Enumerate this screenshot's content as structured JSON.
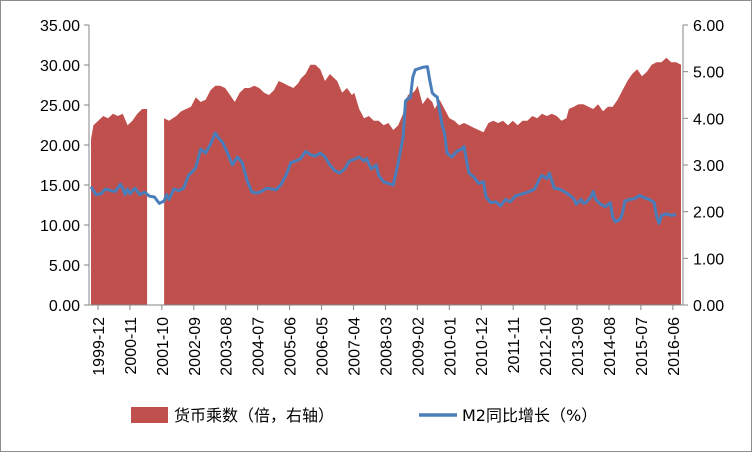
{
  "chart_data": {
    "type": "area",
    "x_ticks": [
      "1999-12",
      "2000-11",
      "2001-10",
      "2002-09",
      "2003-08",
      "2004-07",
      "2005-06",
      "2006-05",
      "2007-04",
      "2008-03",
      "2009-02",
      "2010-01",
      "2010-12",
      "2011-11",
      "2012-10",
      "2013-09",
      "2014-08",
      "2015-07",
      "2016-06"
    ],
    "left_axis": {
      "ylim": [
        0,
        35
      ],
      "ticks": [
        "0.00",
        "5.00",
        "10.00",
        "15.00",
        "20.00",
        "25.00",
        "30.00",
        "35.00"
      ]
    },
    "right_axis": {
      "ylim": [
        0,
        6
      ],
      "ticks": [
        "0.00",
        "1.00",
        "2.00",
        "3.00",
        "4.00",
        "5.00",
        "6.00"
      ]
    },
    "grid": false,
    "legend_position": "bottom",
    "series": [
      {
        "name": "货币乘数（倍，右轴）",
        "axis": "right",
        "type": "area",
        "color": "#c0504d",
        "points": [
          [
            0,
            3.55
          ],
          [
            2,
            3.85
          ],
          [
            6,
            3.95
          ],
          [
            10,
            4.05
          ],
          [
            14,
            4.0
          ],
          [
            18,
            4.1
          ],
          [
            22,
            4.05
          ],
          [
            26,
            4.1
          ],
          [
            30,
            3.85
          ],
          [
            34,
            3.95
          ],
          [
            38,
            4.1
          ],
          [
            42,
            4.2
          ],
          [
            46,
            4.2
          ],
          [
            50,
            null
          ],
          [
            58,
            null
          ],
          [
            60,
            4.0
          ],
          [
            64,
            3.95
          ],
          [
            70,
            4.05
          ],
          [
            74,
            4.15
          ],
          [
            78,
            4.2
          ],
          [
            82,
            4.25
          ],
          [
            86,
            4.45
          ],
          [
            88,
            4.4
          ],
          [
            90,
            4.35
          ],
          [
            94,
            4.4
          ],
          [
            98,
            4.6
          ],
          [
            102,
            4.7
          ],
          [
            106,
            4.7
          ],
          [
            110,
            4.65
          ],
          [
            114,
            4.5
          ],
          [
            118,
            4.35
          ],
          [
            122,
            4.55
          ],
          [
            126,
            4.65
          ],
          [
            130,
            4.65
          ],
          [
            134,
            4.7
          ],
          [
            138,
            4.65
          ],
          [
            142,
            4.55
          ],
          [
            146,
            4.5
          ],
          [
            150,
            4.6
          ],
          [
            154,
            4.8
          ],
          [
            158,
            4.75
          ],
          [
            162,
            4.7
          ],
          [
            166,
            4.65
          ],
          [
            170,
            4.75
          ],
          [
            172,
            4.85
          ],
          [
            176,
            4.95
          ],
          [
            180,
            5.15
          ],
          [
            184,
            5.15
          ],
          [
            188,
            5.05
          ],
          [
            192,
            4.8
          ],
          [
            196,
            4.95
          ],
          [
            200,
            4.85
          ],
          [
            202,
            4.8
          ],
          [
            206,
            4.55
          ],
          [
            210,
            4.65
          ],
          [
            214,
            4.5
          ],
          [
            216,
            4.55
          ],
          [
            220,
            4.2
          ],
          [
            224,
            4.0
          ],
          [
            228,
            4.05
          ],
          [
            232,
            3.95
          ],
          [
            236,
            3.95
          ],
          [
            240,
            3.85
          ],
          [
            244,
            3.9
          ],
          [
            248,
            3.75
          ],
          [
            252,
            3.85
          ],
          [
            256,
            4.1
          ],
          [
            260,
            4.5
          ],
          [
            264,
            4.55
          ],
          [
            266,
            4.6
          ],
          [
            268,
            4.7
          ],
          [
            270,
            4.5
          ],
          [
            272,
            4.3
          ],
          [
            276,
            4.45
          ],
          [
            280,
            4.35
          ],
          [
            282,
            4.2
          ],
          [
            286,
            4.4
          ],
          [
            290,
            4.2
          ],
          [
            294,
            4.0
          ],
          [
            298,
            3.95
          ],
          [
            302,
            3.85
          ],
          [
            306,
            3.9
          ],
          [
            310,
            3.85
          ],
          [
            314,
            3.8
          ],
          [
            318,
            3.75
          ],
          [
            322,
            3.7
          ],
          [
            326,
            3.9
          ],
          [
            330,
            3.95
          ],
          [
            334,
            3.9
          ],
          [
            338,
            3.95
          ],
          [
            342,
            3.85
          ],
          [
            346,
            3.95
          ],
          [
            350,
            3.85
          ],
          [
            354,
            3.95
          ],
          [
            358,
            3.95
          ],
          [
            362,
            4.05
          ],
          [
            366,
            4.0
          ],
          [
            370,
            4.1
          ],
          [
            374,
            4.05
          ],
          [
            378,
            4.1
          ],
          [
            382,
            4.05
          ],
          [
            386,
            3.95
          ],
          [
            390,
            4.0
          ],
          [
            392,
            4.2
          ],
          [
            396,
            4.25
          ],
          [
            400,
            4.3
          ],
          [
            404,
            4.3
          ],
          [
            408,
            4.25
          ],
          [
            412,
            4.2
          ],
          [
            416,
            4.3
          ],
          [
            420,
            4.15
          ],
          [
            424,
            4.25
          ],
          [
            428,
            4.25
          ],
          [
            432,
            4.4
          ],
          [
            436,
            4.6
          ],
          [
            440,
            4.8
          ],
          [
            444,
            4.95
          ],
          [
            448,
            5.05
          ],
          [
            452,
            4.9
          ],
          [
            456,
            5.0
          ],
          [
            460,
            5.15
          ],
          [
            464,
            5.2
          ],
          [
            468,
            5.2
          ],
          [
            472,
            5.3
          ],
          [
            476,
            5.2
          ],
          [
            480,
            5.2
          ],
          [
            484,
            5.15
          ]
        ]
      },
      {
        "name": "M2同比增长（%）",
        "axis": "left",
        "type": "line",
        "color": "#4a7ebb",
        "points": [
          [
            0,
            14.8
          ],
          [
            4,
            13.8
          ],
          [
            8,
            13.9
          ],
          [
            12,
            14.5
          ],
          [
            16,
            14.3
          ],
          [
            20,
            14.2
          ],
          [
            24,
            15.1
          ],
          [
            26,
            14.6
          ],
          [
            28,
            13.8
          ],
          [
            30,
            14.5
          ],
          [
            32,
            13.9
          ],
          [
            36,
            14.6
          ],
          [
            40,
            13.8
          ],
          [
            44,
            14.1
          ],
          [
            48,
            13.6
          ],
          [
            52,
            13.5
          ],
          [
            56,
            12.7
          ],
          [
            60,
            13.0
          ],
          [
            62,
            13.8
          ],
          [
            64,
            13.2
          ],
          [
            68,
            14.5
          ],
          [
            72,
            14.3
          ],
          [
            76,
            14.6
          ],
          [
            80,
            16.2
          ],
          [
            84,
            16.8
          ],
          [
            86,
            17.2
          ],
          [
            90,
            19.5
          ],
          [
            94,
            19.0
          ],
          [
            98,
            20.1
          ],
          [
            102,
            21.5
          ],
          [
            104,
            21.0
          ],
          [
            108,
            20.3
          ],
          [
            112,
            19.0
          ],
          [
            116,
            17.5
          ],
          [
            120,
            18.5
          ],
          [
            124,
            17.8
          ],
          [
            128,
            15.6
          ],
          [
            132,
            14.1
          ],
          [
            136,
            14.0
          ],
          [
            140,
            14.2
          ],
          [
            144,
            14.6
          ],
          [
            148,
            14.5
          ],
          [
            152,
            14.4
          ],
          [
            156,
            15.1
          ],
          [
            160,
            16.2
          ],
          [
            164,
            17.8
          ],
          [
            168,
            18.0
          ],
          [
            172,
            18.3
          ],
          [
            176,
            19.2
          ],
          [
            180,
            18.8
          ],
          [
            184,
            18.6
          ],
          [
            188,
            19.0
          ],
          [
            192,
            18.5
          ],
          [
            196,
            17.5
          ],
          [
            200,
            16.8
          ],
          [
            204,
            16.5
          ],
          [
            208,
            17.0
          ],
          [
            212,
            18.0
          ],
          [
            216,
            18.2
          ],
          [
            220,
            18.5
          ],
          [
            224,
            18.0
          ],
          [
            226,
            18.3
          ],
          [
            230,
            17.0
          ],
          [
            234,
            17.5
          ],
          [
            236,
            16.2
          ],
          [
            240,
            15.4
          ],
          [
            244,
            15.2
          ],
          [
            248,
            15.0
          ],
          [
            252,
            17.8
          ],
          [
            256,
            21.0
          ],
          [
            258,
            25.5
          ],
          [
            260,
            25.8
          ],
          [
            262,
            25.9
          ],
          [
            264,
            28.5
          ],
          [
            266,
            29.4
          ],
          [
            268,
            29.5
          ],
          [
            270,
            29.6
          ],
          [
            272,
            29.7
          ],
          [
            276,
            29.8
          ],
          [
            278,
            28.0
          ],
          [
            280,
            26.5
          ],
          [
            282,
            26.2
          ],
          [
            284,
            26.0
          ],
          [
            288,
            22.5
          ],
          [
            290,
            21.5
          ],
          [
            292,
            19.0
          ],
          [
            296,
            18.5
          ],
          [
            300,
            19.2
          ],
          [
            304,
            19.5
          ],
          [
            306,
            19.8
          ],
          [
            310,
            16.5
          ],
          [
            314,
            16.0
          ],
          [
            318,
            15.2
          ],
          [
            322,
            15.4
          ],
          [
            324,
            13.5
          ],
          [
            328,
            12.8
          ],
          [
            332,
            12.9
          ],
          [
            336,
            12.4
          ],
          [
            340,
            13.2
          ],
          [
            344,
            12.9
          ],
          [
            348,
            13.6
          ],
          [
            352,
            13.8
          ],
          [
            356,
            14.0
          ],
          [
            360,
            14.2
          ],
          [
            364,
            14.5
          ],
          [
            368,
            15.8
          ],
          [
            370,
            16.2
          ],
          [
            374,
            15.8
          ],
          [
            376,
            16.5
          ],
          [
            380,
            14.6
          ],
          [
            384,
            14.5
          ],
          [
            388,
            14.2
          ],
          [
            392,
            13.8
          ],
          [
            396,
            13.3
          ],
          [
            398,
            12.6
          ],
          [
            402,
            13.2
          ],
          [
            404,
            12.7
          ],
          [
            406,
            12.8
          ],
          [
            410,
            13.5
          ],
          [
            412,
            14.2
          ],
          [
            414,
            13.2
          ],
          [
            418,
            12.6
          ],
          [
            422,
            12.3
          ],
          [
            426,
            12.8
          ],
          [
            428,
            11.0
          ],
          [
            430,
            10.4
          ],
          [
            434,
            10.7
          ],
          [
            436,
            11.5
          ],
          [
            438,
            13.0
          ],
          [
            442,
            13.2
          ],
          [
            446,
            13.3
          ],
          [
            450,
            13.7
          ],
          [
            454,
            13.4
          ],
          [
            458,
            13.2
          ],
          [
            462,
            12.8
          ],
          [
            464,
            11.1
          ],
          [
            466,
            10.2
          ],
          [
            468,
            11.2
          ],
          [
            472,
            11.4
          ],
          [
            476,
            11.2
          ],
          [
            480,
            11.3
          ]
        ]
      }
    ]
  }
}
